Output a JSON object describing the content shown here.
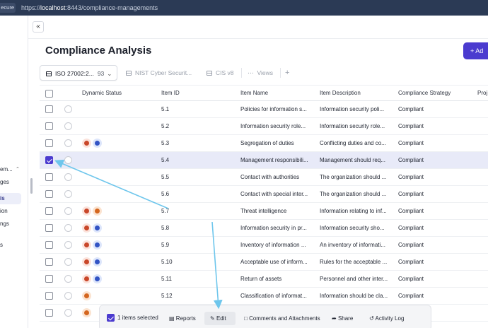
{
  "browser": {
    "secure_label": "ecure",
    "url_scheme": "https://",
    "url_host": "localhost",
    "url_path": ":8443/compliance-managements"
  },
  "sidebar": {
    "group_label": "em...",
    "items": [
      {
        "label": "ges",
        "active": false
      },
      {
        "label": "is",
        "active": true
      },
      {
        "label": "ion",
        "active": false
      },
      {
        "label": "ngs",
        "active": false
      },
      {
        "label": "s",
        "active": false
      }
    ]
  },
  "collapse_icon": "«",
  "page": {
    "title": "Compliance Analysis",
    "add_button": "+ Ad"
  },
  "tabs": {
    "active": {
      "label": "ISO 27002:2...",
      "count": "93",
      "caret": "⌄"
    },
    "others": [
      "NIST Cyber Securit...",
      "CIS v8",
      "Views"
    ],
    "add": "+",
    "more": "⋮"
  },
  "table": {
    "columns": [
      "Dynamic Status",
      "Item ID",
      "Item Name",
      "Item Description",
      "Compliance Strategy",
      "Proj"
    ],
    "rows": [
      {
        "id": "5.1",
        "name": "Policies for information s...",
        "desc": "Information security poli...",
        "strategy": "Compliant",
        "badges": [],
        "selected": false
      },
      {
        "id": "5.2",
        "name": "Information security role...",
        "desc": "Information security role...",
        "strategy": "Compliant",
        "badges": [],
        "selected": false
      },
      {
        "id": "5.3",
        "name": "Segregation of duties",
        "desc": "Conflicting duties and co...",
        "strategy": "Compliant",
        "badges": [
          "red",
          "blue"
        ],
        "selected": false
      },
      {
        "id": "5.4",
        "name": "Management responsibili...",
        "desc": "Management should req...",
        "strategy": "Compliant",
        "badges": [],
        "selected": true
      },
      {
        "id": "5.5",
        "name": "Contact with authorities",
        "desc": "The organization should ...",
        "strategy": "Compliant",
        "badges": [],
        "selected": false
      },
      {
        "id": "5.6",
        "name": "Contact with special inter...",
        "desc": "The organization should ...",
        "strategy": "Compliant",
        "badges": [],
        "selected": false
      },
      {
        "id": "5.7",
        "name": "Threat intelligence",
        "desc": "Information relating to inf...",
        "strategy": "Compliant",
        "badges": [
          "red",
          "orange"
        ],
        "selected": false
      },
      {
        "id": "5.8",
        "name": "Information security in pr...",
        "desc": "Information security sho...",
        "strategy": "Compliant",
        "badges": [
          "red",
          "blue"
        ],
        "selected": false
      },
      {
        "id": "5.9",
        "name": "Inventory of information ...",
        "desc": "An inventory of informati...",
        "strategy": "Compliant",
        "badges": [
          "red",
          "blue"
        ],
        "selected": false
      },
      {
        "id": "5.10",
        "name": "Acceptable use of inform...",
        "desc": "Rules for the acceptable ...",
        "strategy": "Compliant",
        "badges": [
          "red",
          "blue"
        ],
        "selected": false
      },
      {
        "id": "5.11",
        "name": "Return of assets",
        "desc": "Personnel and other inter...",
        "strategy": "Compliant",
        "badges": [
          "red",
          "blue"
        ],
        "selected": false
      },
      {
        "id": "5.12",
        "name": "Classification of informat...",
        "desc": "Information should be cla...",
        "strategy": "Compliant",
        "badges": [
          "orange"
        ],
        "selected": false
      },
      {
        "id": "",
        "name": "",
        "desc": "",
        "strategy": "",
        "badges": [
          "orange"
        ],
        "selected": false
      }
    ]
  },
  "action_bar": {
    "selected_label": "1 items selected",
    "reports": "Reports",
    "edit": "Edit",
    "comments": "Comments and Attachments",
    "share": "Share",
    "activity": "Activity Log"
  },
  "colors": {
    "accent": "#4b3bcf",
    "annotation_arrow": "#6ec6ec",
    "selected_row": "#e8eaf8"
  },
  "icons": {
    "tab": "grid-icon",
    "views": "ellipsis-icon",
    "reports": "document-icon",
    "edit": "pencil-icon",
    "comments": "comment-icon",
    "share": "share-icon",
    "activity": "history-icon"
  }
}
